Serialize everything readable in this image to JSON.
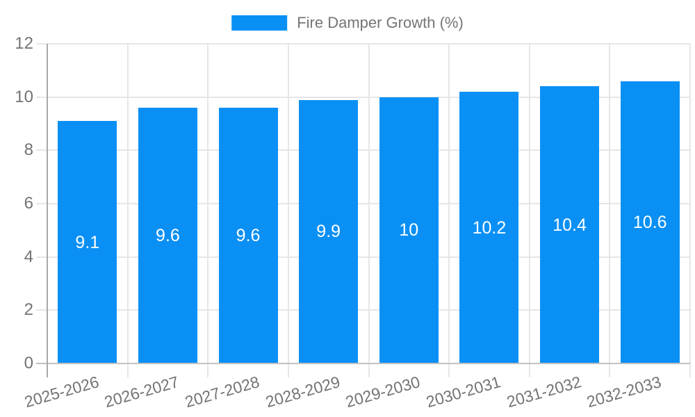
{
  "legend": {
    "label": "Fire Damper Growth (%)"
  },
  "colors": {
    "bar": "#0a90f5",
    "grid": "#e6e6e6",
    "baseline": "#c2c2c2",
    "axis": "#a9a9a9",
    "tick_text": "#737373",
    "value_label": "#ffffff",
    "legend_text": "#757575",
    "background": "#ffffff"
  },
  "chart_data": {
    "type": "bar",
    "title": "Fire Damper Growth (%)",
    "xlabel": "",
    "ylabel": "",
    "categories": [
      "2025-2026",
      "2026-2027",
      "2027-2028",
      "2028-2029",
      "2029-2030",
      "2030-2031",
      "2031-2032",
      "2032-2033"
    ],
    "series": [
      {
        "name": "Fire Damper Growth (%)",
        "values": [
          9.1,
          9.6,
          9.6,
          9.9,
          10,
          10.2,
          10.4,
          10.6
        ]
      }
    ],
    "bar_value_labels": [
      "9.1",
      "9.6",
      "9.6",
      "9.9",
      "10",
      "10.2",
      "10.4",
      "10.6"
    ],
    "ylim": [
      0,
      12
    ],
    "yticks": [
      0,
      2,
      4,
      6,
      8,
      10,
      12
    ],
    "grid": true,
    "legend_position": "top-center",
    "x_label_rotation_deg": -16
  }
}
